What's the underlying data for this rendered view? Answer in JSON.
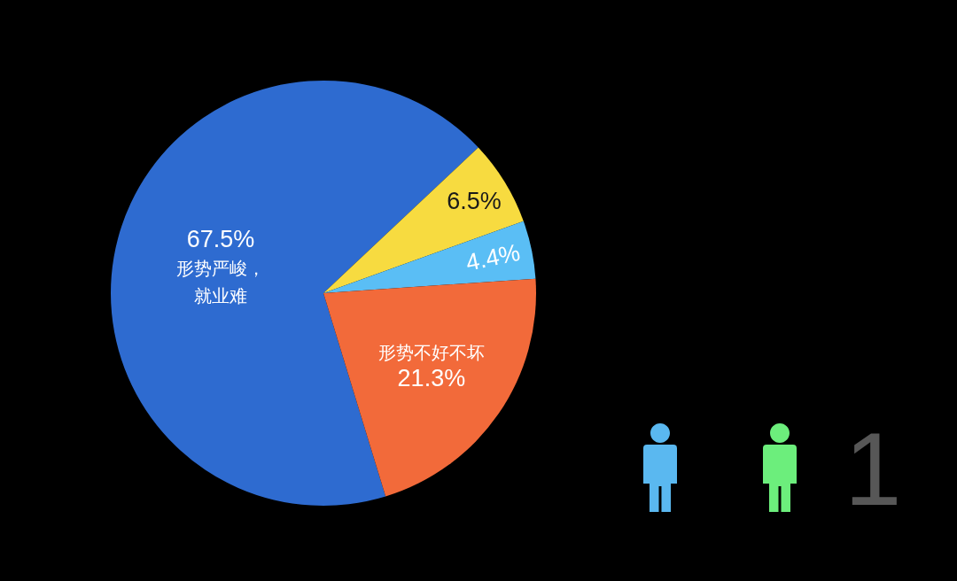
{
  "chart_data": {
    "type": "pie",
    "categories": [
      "形势严峻，就业难",
      null,
      null,
      "形势不好不坏"
    ],
    "values": [
      67.5,
      6.5,
      4.4,
      21.3
    ],
    "colors": [
      "#2e6bd0",
      "#f7db40",
      "#5abef5",
      "#f26a3a"
    ],
    "value_labels": [
      "67.5%",
      "6.5%",
      "4.4%",
      "21.3%"
    ],
    "annotations": [
      "1"
    ],
    "legend": false
  }
}
